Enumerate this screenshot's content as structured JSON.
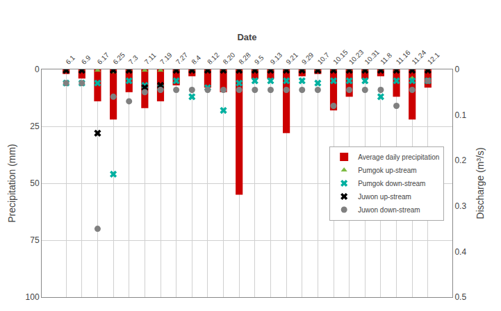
{
  "chart_data": {
    "type": "bar",
    "xlabel": "Date",
    "ylabel": "Precipitation (mm)",
    "y2label": "Discharge (m³/s)",
    "categories": [
      "6.1",
      "6.9",
      "6.17",
      "6.25",
      "7.3",
      "7.11",
      "7.19",
      "7.27",
      "8.4",
      "8.12",
      "8.20",
      "8.28",
      "9.5",
      "9.13",
      "9.21",
      "9.29",
      "10.7",
      "10.15",
      "10.23",
      "10.31",
      "11.8",
      "11.16",
      "11.24",
      "12.1"
    ],
    "ylim": [
      100,
      0
    ],
    "yticks": [
      0,
      25,
      50,
      75,
      100
    ],
    "y2lim": [
      0.5,
      0
    ],
    "y2ticks": [
      0,
      0.1,
      0.2,
      0.3,
      0.4,
      0.5
    ],
    "grid": true,
    "legend": "right",
    "series": [
      {
        "name": "Average daily precipitation",
        "type": "bar",
        "color": "#cc0000",
        "values": [
          2,
          4,
          14,
          22,
          10,
          17,
          14,
          7,
          3,
          8,
          10,
          55,
          4,
          4,
          28,
          3,
          2,
          18,
          12,
          4,
          3,
          12,
          22,
          8
        ]
      },
      {
        "name": "Pumgok up-stream",
        "type": "scatter",
        "axis": "y2",
        "marker": "triangle-up",
        "color": "#7dbb42",
        "values": [
          0.002,
          0.002,
          0.002,
          0.005,
          0.002,
          0.002,
          0.002,
          0.002,
          0.002,
          0.002,
          0.002,
          0.002,
          0.002,
          0.002,
          0.002,
          0.002,
          0.002,
          0.002,
          0.002,
          0.002,
          0.002,
          0.002,
          0.02,
          0.002
        ]
      },
      {
        "name": "Pumgok down-stream",
        "type": "scatter",
        "axis": "y2",
        "marker": "x",
        "color": "#00b0a0",
        "values": [
          0.03,
          0.03,
          0.03,
          0.23,
          0.025,
          0.035,
          0.04,
          0.025,
          0.06,
          0.04,
          0.09,
          0.03,
          0.025,
          0.025,
          0.025,
          0.025,
          0.03,
          0.025,
          0.025,
          0.025,
          0.06,
          0.025,
          0.025,
          0.025
        ]
      },
      {
        "name": "Juwon up-stream",
        "type": "scatter",
        "axis": "y2",
        "marker": "x",
        "color": "#000000",
        "values": [
          0.002,
          0.002,
          0.14,
          0.002,
          0.002,
          0.04,
          0.035,
          0.002,
          0.002,
          0.002,
          0.002,
          0.002,
          0.002,
          0.002,
          0.002,
          0.002,
          0.002,
          0.002,
          0.002,
          0.002,
          0.002,
          0.002,
          0.002,
          0.002
        ]
      },
      {
        "name": "Juwon down-stream",
        "type": "scatter",
        "axis": "y2",
        "marker": "circle",
        "color": "#808080",
        "values": [
          0.03,
          0.03,
          0.35,
          0.06,
          0.07,
          0.05,
          0.045,
          0.045,
          0.045,
          0.045,
          0.045,
          0.045,
          0.045,
          0.045,
          0.045,
          0.045,
          0.045,
          0.08,
          0.045,
          0.045,
          0.045,
          0.08,
          0.045,
          0.025
        ]
      }
    ]
  }
}
